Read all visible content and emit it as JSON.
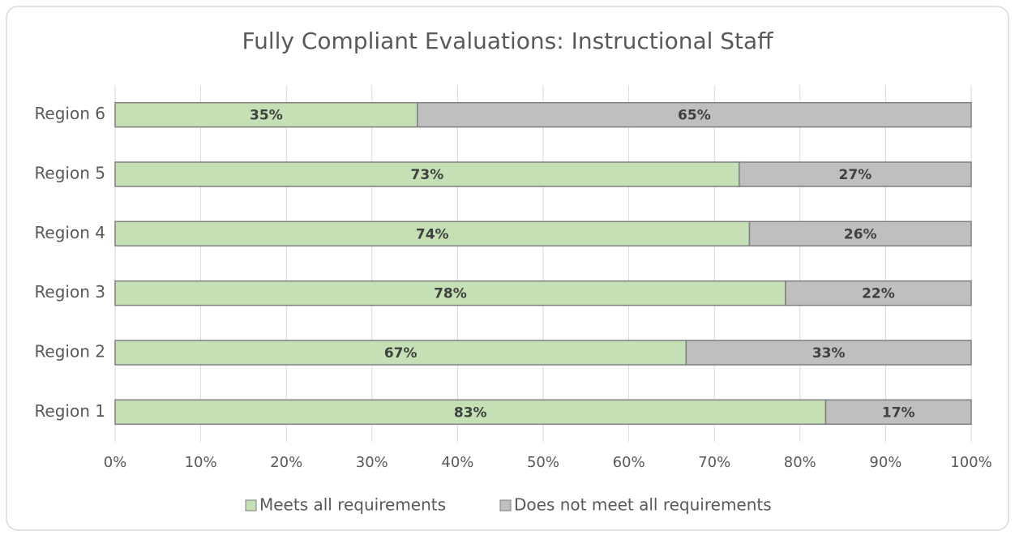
{
  "chart_data": {
    "type": "stacked_barh",
    "title": "Fully Compliant Evaluations:  Instructional Staff",
    "categories": [
      "Region 1",
      "Region 2",
      "Region 3",
      "Region 4",
      "Region 5",
      "Region 6"
    ],
    "series": [
      {
        "name": "Meets all requirements",
        "color": "#c5e0b4",
        "values": [
          83.0,
          66.7,
          78.3,
          74.1,
          72.9,
          35.3
        ],
        "value_labels": [
          "83%",
          "67%",
          "78%",
          "74%",
          "73%",
          "35%"
        ]
      },
      {
        "name": "Does not meet all requirements",
        "color": "#bfbfbf",
        "values": [
          17.0,
          33.3,
          21.7,
          25.9,
          27.1,
          64.7
        ],
        "value_labels": [
          "17%",
          "33%",
          "22%",
          "26%",
          "27%",
          "65%"
        ]
      }
    ],
    "xlim": [
      0,
      100
    ],
    "xticks": [
      {
        "value": 0,
        "label": "0%"
      },
      {
        "value": 10,
        "label": "10%"
      },
      {
        "value": 20,
        "label": "20%"
      },
      {
        "value": 30,
        "label": "30%"
      },
      {
        "value": 40,
        "label": "40%"
      },
      {
        "value": 50,
        "label": "50%"
      },
      {
        "value": 60,
        "label": "60%"
      },
      {
        "value": 70,
        "label": "70%"
      },
      {
        "value": 80,
        "label": "80%"
      },
      {
        "value": 90,
        "label": "90%"
      },
      {
        "value": 100,
        "label": "100%"
      }
    ],
    "grid": true,
    "legend": "bottom"
  }
}
